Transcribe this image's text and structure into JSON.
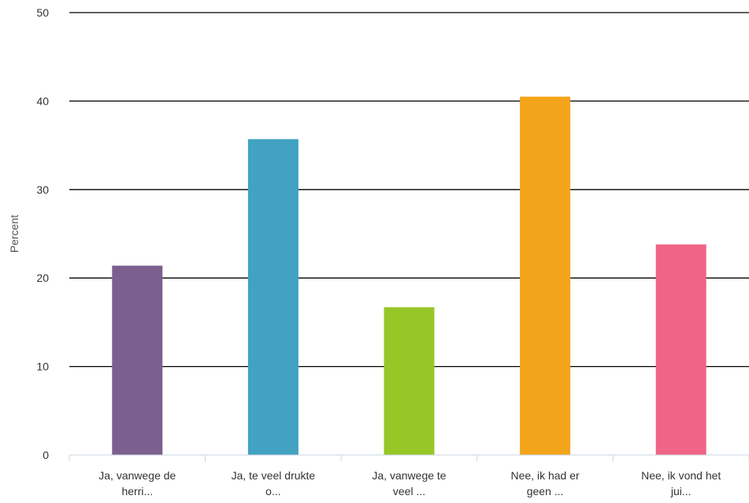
{
  "chart_data": {
    "type": "bar",
    "title": "",
    "xlabel": "",
    "ylabel": "Percent",
    "ylim": [
      0,
      50
    ],
    "yticks": [
      0,
      10,
      20,
      30,
      40,
      50
    ],
    "grid": true,
    "categories": [
      [
        "Ja, vanwege de",
        "herri..."
      ],
      [
        "Ja, te veel drukte",
        "o..."
      ],
      [
        "Ja, vanwege te",
        "veel ..."
      ],
      [
        "Nee, ik had er",
        "geen ..."
      ],
      [
        "Nee, ik vond het",
        "jui..."
      ]
    ],
    "values": [
      21.4,
      35.7,
      16.7,
      40.5,
      23.8
    ],
    "colors": [
      "#7b5f8e",
      "#41a2c2",
      "#97c627",
      "#f4a41b",
      "#f06487"
    ]
  }
}
